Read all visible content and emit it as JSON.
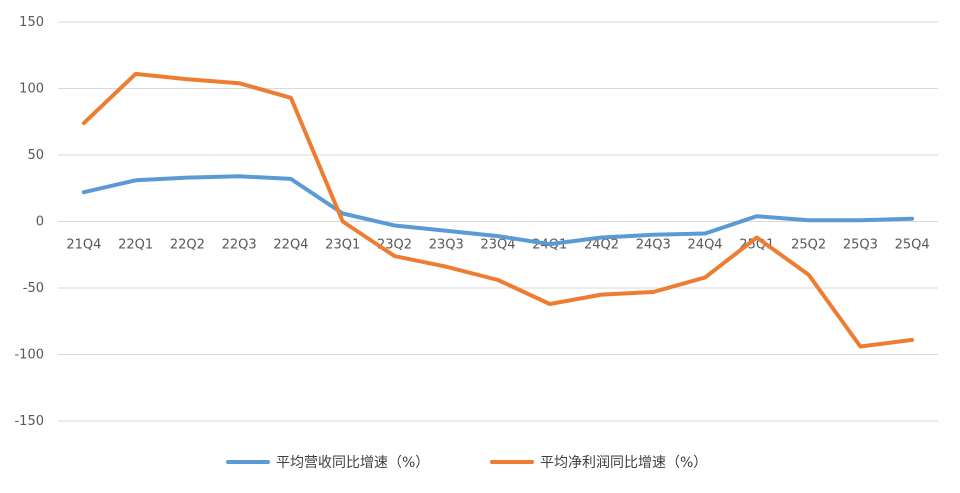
{
  "chart_data": {
    "type": "line",
    "categories": [
      "21Q4",
      "22Q1",
      "22Q2",
      "22Q3",
      "22Q4",
      "23Q1",
      "23Q2",
      "23Q3",
      "23Q4",
      "24Q1",
      "24Q2",
      "24Q3",
      "24Q4",
      "25Q1",
      "25Q2",
      "25Q3",
      "25Q4"
    ],
    "series": [
      {
        "name": "平均营收同比增速（%）",
        "color": "#5b9bd5",
        "values": [
          22,
          31,
          33,
          34,
          32,
          6,
          -3,
          -7,
          -11,
          -17,
          -12,
          -10,
          -9,
          4,
          1,
          1,
          2
        ]
      },
      {
        "name": "平均净利润同比增速（%）",
        "color": "#ed7d31",
        "values": [
          74,
          111,
          107,
          104,
          93,
          0,
          -26,
          -34,
          -44,
          -62,
          -55,
          -53,
          -42,
          -12,
          -40,
          -94,
          -89
        ]
      }
    ],
    "ylim": [
      -150,
      150
    ],
    "yticks": [
      150,
      100,
      50,
      0,
      -50,
      -100,
      -150
    ],
    "grid": true,
    "legend_position": "bottom"
  }
}
